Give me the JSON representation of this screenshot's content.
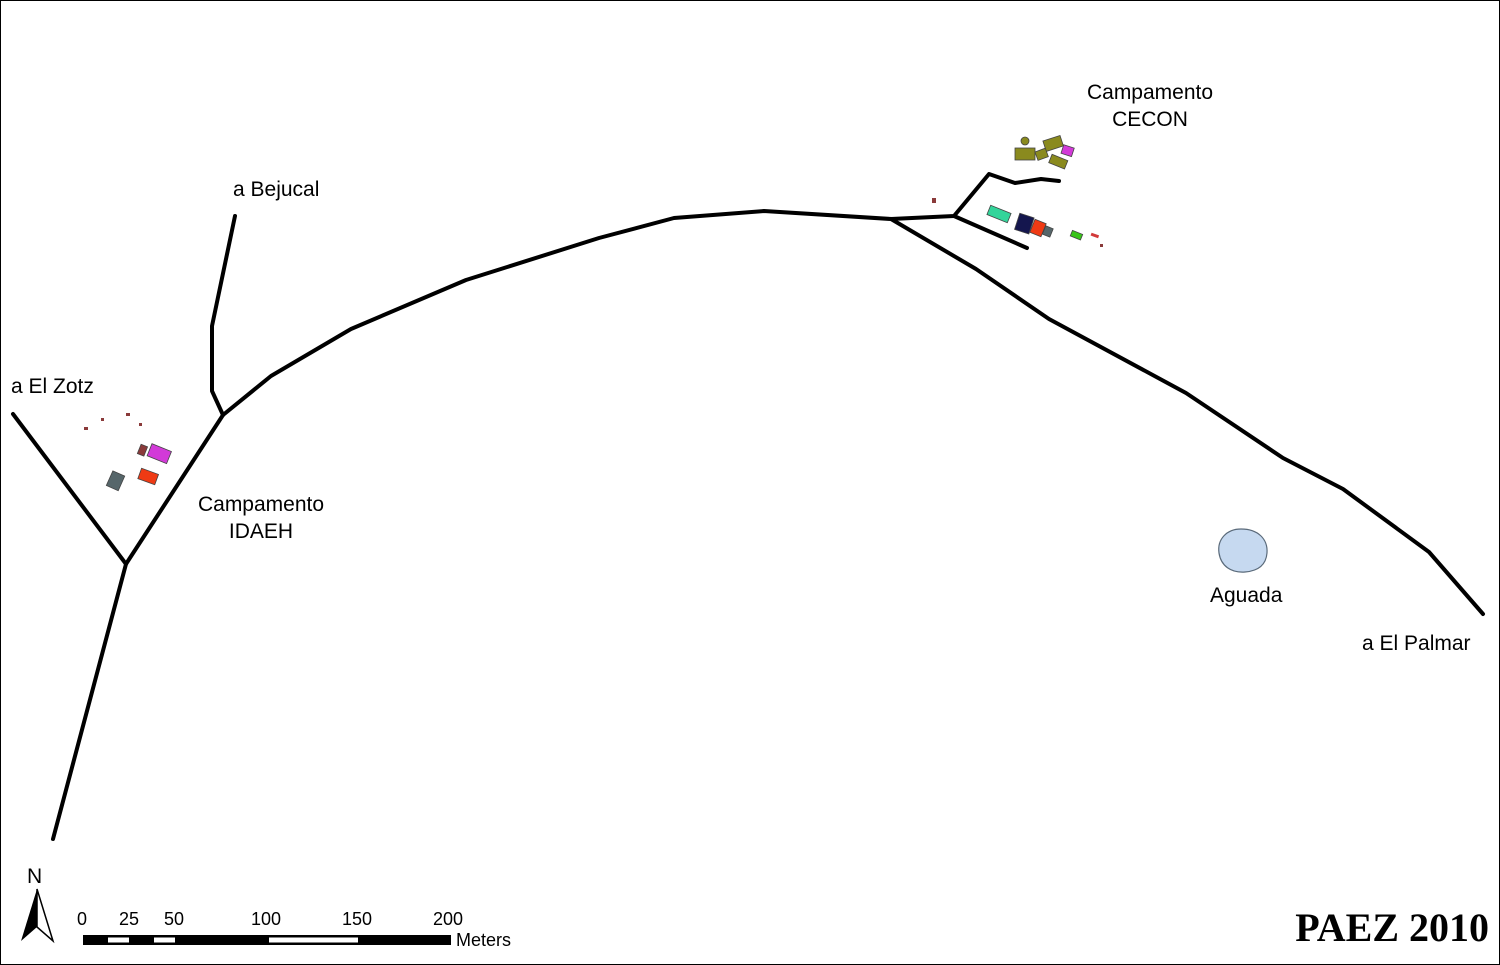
{
  "places": {
    "bejucal": "a Bejucal",
    "el_zotz": "a El Zotz",
    "el_palmar": "a El Palmar",
    "aguada": "Aguada",
    "camp_idaeh": [
      "Campamento",
      "IDAEH"
    ],
    "camp_cecon": [
      "Campamento",
      "CECON"
    ]
  },
  "north_arrow": {
    "label": "N"
  },
  "scale_bar": {
    "ticks": [
      "0",
      "25",
      "50",
      "100",
      "150",
      "200"
    ],
    "units": "Meters"
  },
  "credit": "PAEZ 2010",
  "colors": {
    "road": "#000000",
    "water_fill": "#c6d9f0",
    "water_stroke": "#5a6a7a",
    "olive": "#8a8a1e",
    "magenta": "#d23ad8",
    "red_orange": "#ef3a14",
    "slate": "#56666a",
    "teal": "#33d49a",
    "navy": "#14164e",
    "green": "#39c41a",
    "maroon": "#8a3a3a"
  }
}
